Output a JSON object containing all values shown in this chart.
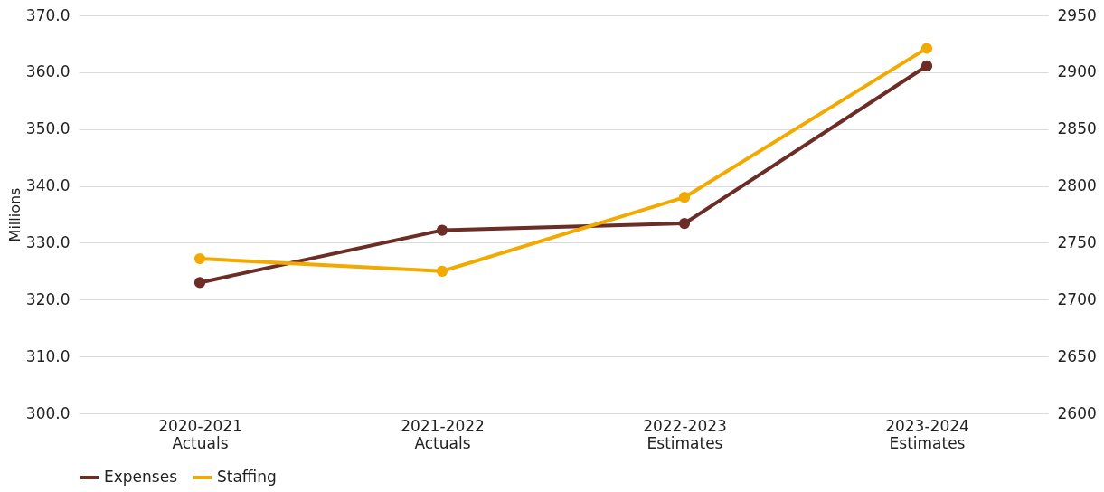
{
  "chart_data": {
    "type": "line",
    "ylabel": "Millions",
    "categories": [
      "2020-2021\nActuals",
      "2021-2022\nActuals",
      "2022-2023\nEstimates",
      "2023-2024\nEstimates"
    ],
    "series": [
      {
        "name": "Expenses",
        "color": "#6b2d26",
        "values": [
          323.0,
          332.2,
          333.4,
          361.1
        ]
      },
      {
        "name": "Staffing",
        "color": "#f2a900",
        "values": [
          2736,
          2725,
          2790,
          2921
        ],
        "axis": "y2"
      }
    ],
    "ylim": [
      300,
      370
    ],
    "yticks": [
      {
        "value": 300,
        "label": "300.0"
      },
      {
        "value": 310,
        "label": "310.0"
      },
      {
        "value": 320,
        "label": "320.0"
      },
      {
        "value": 330,
        "label": "330.0"
      },
      {
        "value": 340,
        "label": "340.0"
      },
      {
        "value": 350,
        "label": "350.0"
      },
      {
        "value": 360,
        "label": "360.0"
      },
      {
        "value": 370,
        "label": "370.0"
      }
    ],
    "y2lim": [
      2600,
      2950
    ],
    "y2ticks": [
      2600,
      2650,
      2700,
      2750,
      2800,
      2850,
      2900,
      2950
    ],
    "grid": "y",
    "legend": "bottom",
    "marker": "circle",
    "line_style": "solid"
  }
}
